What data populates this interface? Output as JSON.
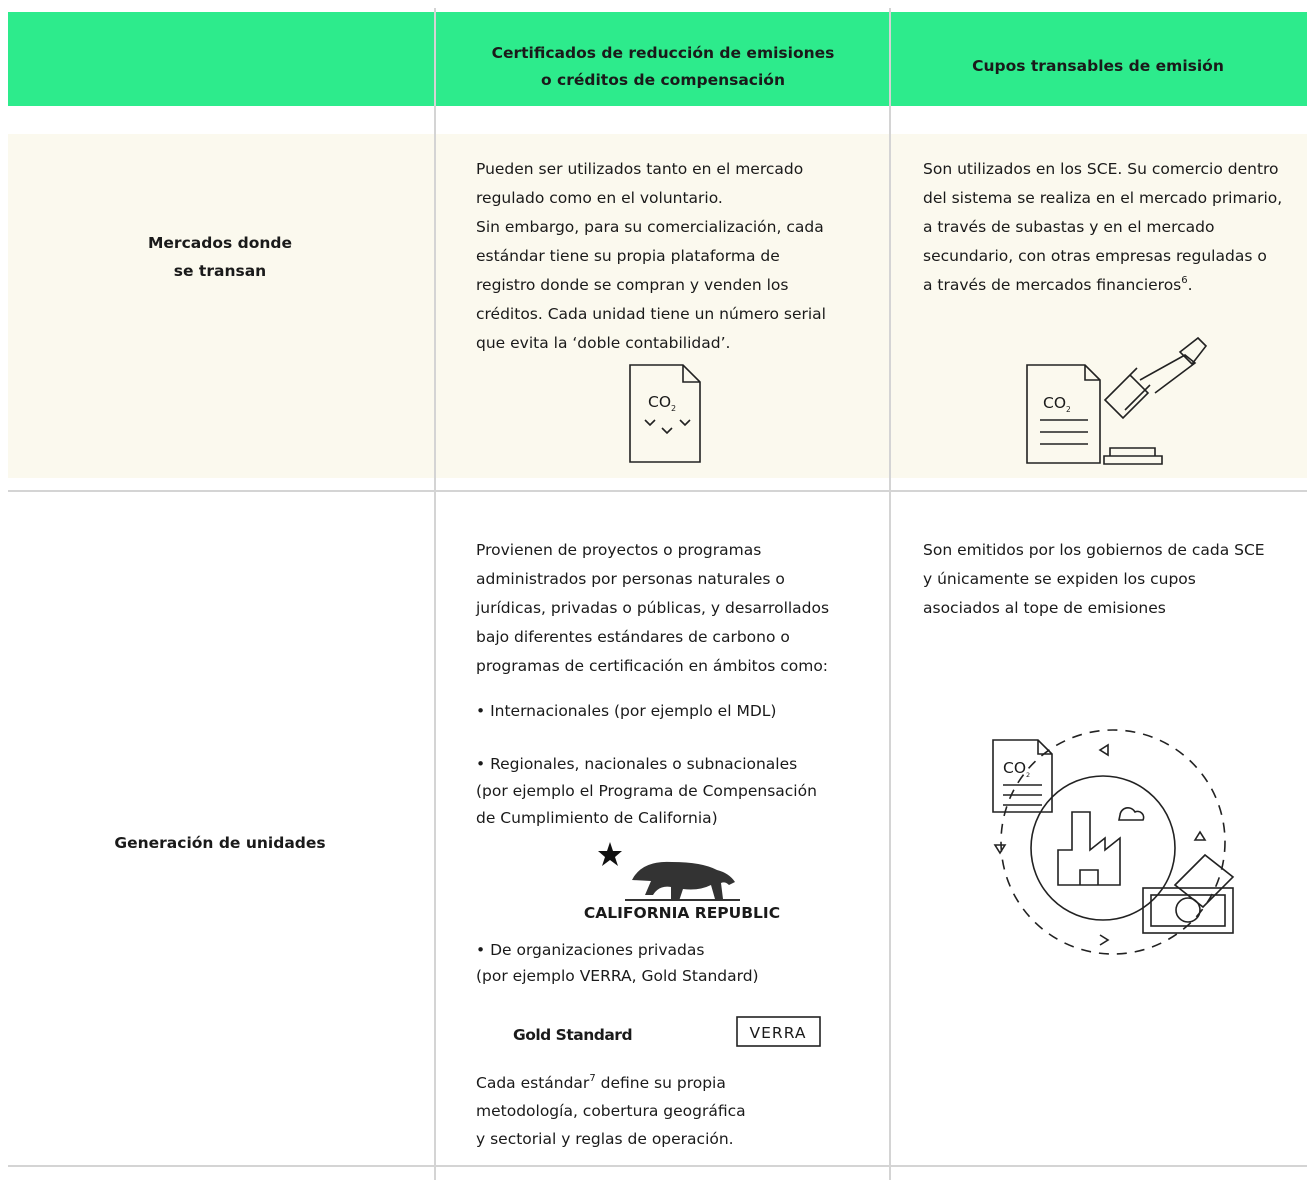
{
  "header": {
    "columns": [
      [
        "Certificados de reducción de emisiones",
        "o créditos de compensación"
      ],
      [
        "Cupos transables de emisión"
      ]
    ]
  },
  "rows": [
    {
      "label": [
        "Mercados donde",
        "se transan"
      ],
      "cells": [
        {
          "blocks": [
            [
              "Pueden ser utilizados tanto en el mercado",
              "regulado como en el voluntario.",
              "Sin embargo, para su comercialización, cada",
              "estándar tiene su propia plataforma de",
              "registro donde se compran y venden los",
              "créditos. Cada unidad tiene un número serial",
              "que evita la ‘doble contabilidad’."
            ]
          ]
        },
        {
          "blocks": [
            [
              "Son utilizados en los SCE. Su comercio dentro",
              "del sistema se realiza en el mercado primario,",
              "a través de subastas y en el mercado",
              "secundario, con otras empresas reguladas o",
              {
                "text": "a través de mercados financieros",
                "sup": "6",
                "after": "."
              }
            ]
          ]
        }
      ]
    },
    {
      "label": [
        "Generación de unidades"
      ],
      "cells": [
        {
          "blocks": [
            [
              "Provienen de proyectos o programas",
              "administrados por personas naturales o",
              "jurídicas, privadas o públicas, y desarrollados",
              "bajo diferentes estándares de carbono o",
              "programas de certificación en ámbitos como:"
            ],
            [
              "• Internacionales (por ejemplo el MDL)"
            ],
            [
              "• Regionales, nacionales o subnacionales",
              "(por ejemplo el Programa de Compensación",
              "de Cumplimiento de California)"
            ],
            [
              "• De organizaciones privadas"
            ],
            [
              "(por ejemplo VERRA, Gold Standard)"
            ],
            [
              {
                "text": "Cada estándar",
                "sup": "7",
                "after": " define su propia"
              },
              "metodología, cobertura geográfica",
              "y sectorial y reglas de operación."
            ]
          ]
        },
        {
          "blocks": [
            [
              "Son emitidos por los gobiernos de cada SCE",
              "y únicamente se expiden los cupos",
              "asociados al tope de emisiones"
            ]
          ]
        }
      ]
    }
  ],
  "logos": {
    "california": "CALIFORNIA REPUBLIC",
    "gold": "Gold Standard",
    "verra": "VERRA"
  },
  "icons": {
    "co2": {
      "text": "CO",
      "sub": "2"
    }
  }
}
